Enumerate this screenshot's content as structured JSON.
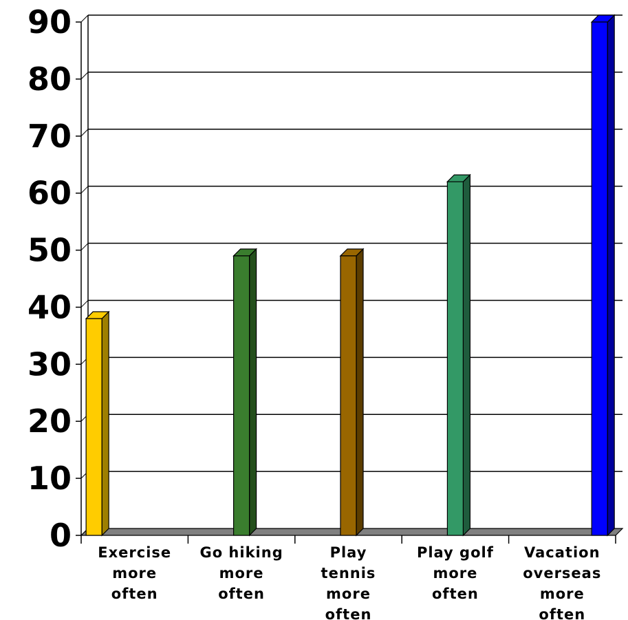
{
  "chart_data": {
    "type": "bar",
    "title": "",
    "xlabel": "",
    "ylabel": "",
    "ylim": [
      0,
      90
    ],
    "yticks": [
      0,
      10,
      20,
      30,
      40,
      50,
      60,
      70,
      80,
      90
    ],
    "grid": true,
    "legend": "none",
    "categories": [
      [
        "Exercise",
        "more",
        "often"
      ],
      [
        "Go hiking",
        "more",
        "often"
      ],
      [
        "Play",
        "tennis",
        "more",
        "often"
      ],
      [
        "Play golf",
        "more",
        "often"
      ],
      [
        "Vacation",
        "overseas",
        "more",
        "often"
      ]
    ],
    "values": [
      38,
      49,
      49,
      62,
      90
    ],
    "colors": [
      "#FFCC00",
      "#3A7D2E",
      "#996600",
      "#339966",
      "#0000FF"
    ],
    "side_colors": [
      "#9E7F00",
      "#244F1C",
      "#5C3D00",
      "#1F5C3D",
      "#00009C"
    ]
  }
}
